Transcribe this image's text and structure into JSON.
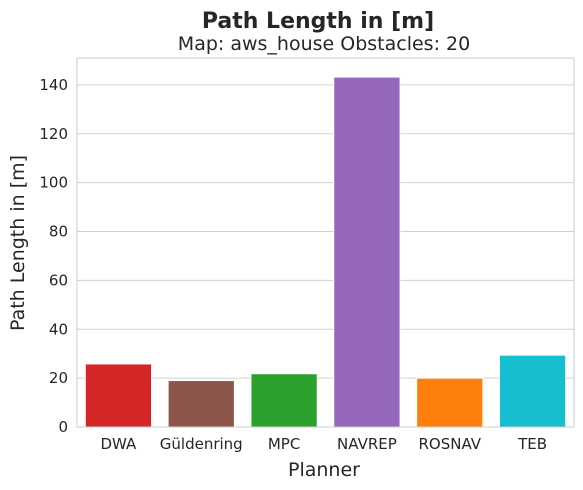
{
  "chart_data": {
    "type": "bar",
    "title": "Path Length in [m]",
    "subtitle": "Map: aws_house Obstacles: 20",
    "xlabel": "Planner",
    "ylabel": "Path Length in [m]",
    "categories": [
      "DWA",
      "Güldenring",
      "MPC",
      "NAVREP",
      "ROSNAV",
      "TEB"
    ],
    "values": [
      25.8,
      19.0,
      21.8,
      143.2,
      20.0,
      29.4
    ],
    "colors": [
      "#d62728",
      "#8c564b",
      "#2ca02c",
      "#9467bd",
      "#ff7f0e",
      "#17becf"
    ],
    "ylim": [
      0,
      151
    ],
    "yticks": [
      0,
      20,
      40,
      60,
      80,
      100,
      120,
      140
    ],
    "grid": true,
    "legend": "none"
  }
}
